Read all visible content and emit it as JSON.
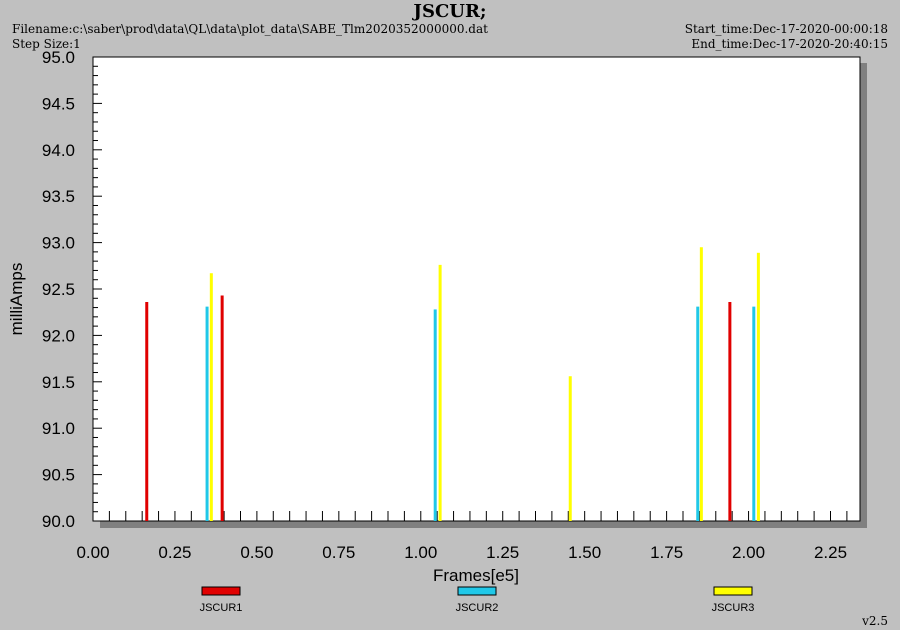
{
  "header": {
    "filename": "Filename:c:\\saber\\prod\\data\\QL\\data\\plot_data\\SABE_Tlm2020352000000.dat",
    "step_size": "Step Size:1",
    "start_time": "Start_time:Dec-17-2020-00:00:18",
    "end_time": "End_time:Dec-17-2020-20:40:15",
    "version": "v2.5"
  },
  "chart_data": {
    "type": "bar",
    "title": "JSCUR;",
    "xlabel": "Frames[e5]",
    "ylabel": "milliAmps",
    "xlim": [
      0.0,
      2.34
    ],
    "ylim": [
      90.0,
      95.0
    ],
    "xticks": [
      "0.00",
      "0.25",
      "0.50",
      "0.75",
      "1.00",
      "1.25",
      "1.50",
      "1.75",
      "2.00",
      "2.25"
    ],
    "yticks": [
      "90.0",
      "90.5",
      "91.0",
      "91.5",
      "92.0",
      "92.5",
      "93.0",
      "93.5",
      "94.0",
      "94.5",
      "95.0"
    ],
    "grid": false,
    "legend_position": "bottom",
    "series": [
      {
        "name": "JSCUR1",
        "color": "#e00000",
        "points": [
          {
            "x": 0.164,
            "y": 92.36
          },
          {
            "x": 0.394,
            "y": 92.43
          },
          {
            "x": 1.943,
            "y": 92.36
          }
        ]
      },
      {
        "name": "JSCUR2",
        "color": "#20c8e8",
        "points": [
          {
            "x": 0.348,
            "y": 92.31
          },
          {
            "x": 1.044,
            "y": 92.28
          },
          {
            "x": 1.845,
            "y": 92.31
          },
          {
            "x": 2.016,
            "y": 92.31
          }
        ]
      },
      {
        "name": "JSCUR3",
        "color": "#ffff00",
        "points": [
          {
            "x": 0.361,
            "y": 92.67
          },
          {
            "x": 1.059,
            "y": 92.76
          },
          {
            "x": 1.456,
            "y": 91.56
          },
          {
            "x": 1.856,
            "y": 92.95
          },
          {
            "x": 2.03,
            "y": 92.89
          }
        ]
      }
    ]
  }
}
